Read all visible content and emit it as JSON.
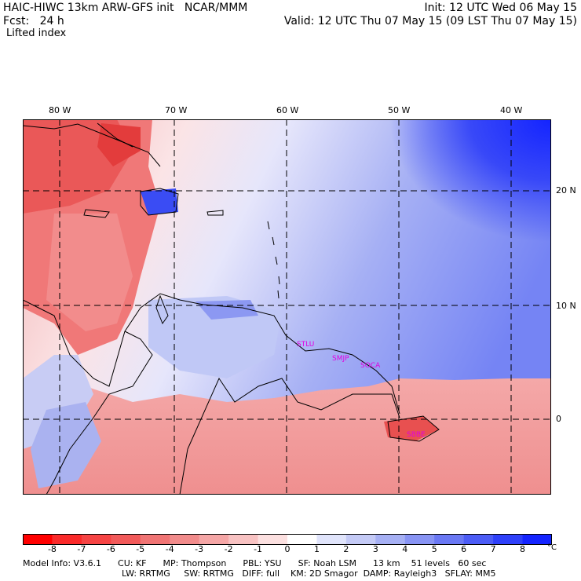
{
  "header": {
    "title": "HAIC-HIWC 13km ARW-GFS init   NCAR/MMM",
    "init": "Init: 12 UTC Wed 06 May 15",
    "fcst": "Fcst:   24 h",
    "valid": "Valid: 12 UTC Thu 07 May 15 (09 LST Thu 07 May 15)",
    "field": "Lifted index"
  },
  "map": {
    "lon_labels": [
      "80 W",
      "70 W",
      "60 W",
      "50 W",
      "40 W"
    ],
    "lat_labels": [
      "20 N",
      "10 N",
      "0"
    ],
    "stations": [
      "STLU",
      "SMJP",
      "SOCA",
      "SBBE"
    ],
    "colors": {
      "negative": "#e8282e",
      "neutral": "#ffffff",
      "positive": "#1020ff"
    }
  },
  "colorbar": {
    "ticks": [
      "-8",
      "-7",
      "-6",
      "-5",
      "-4",
      "-3",
      "-2",
      "-1",
      "0",
      "1",
      "2",
      "3",
      "4",
      "5",
      "6",
      "7",
      "8"
    ],
    "unit": "°C",
    "colors": [
      "#ff0000",
      "#fa2a2a",
      "#f64444",
      "#f25a5a",
      "#f07474",
      "#f18b8b",
      "#f5a6a6",
      "#f8c2c2",
      "#fce0e0",
      "#ffffff",
      "#e0e4fb",
      "#c4caf6",
      "#a6b0f4",
      "#8894f4",
      "#6a78f4",
      "#4c5cf6",
      "#2e40fa",
      "#1424ff"
    ]
  },
  "model_info": {
    "line1": "Model Info: V3.6.1      CU: KF      MP: Thompson      PBL: YSU      SF: Noah LSM      13 km    51 levels   60 sec",
    "line2": "LW: RRTMG     SW: RRTMG   DIFF: full    KM: 2D Smagor  DAMP: Rayleigh3   SFLAY: MM5"
  }
}
